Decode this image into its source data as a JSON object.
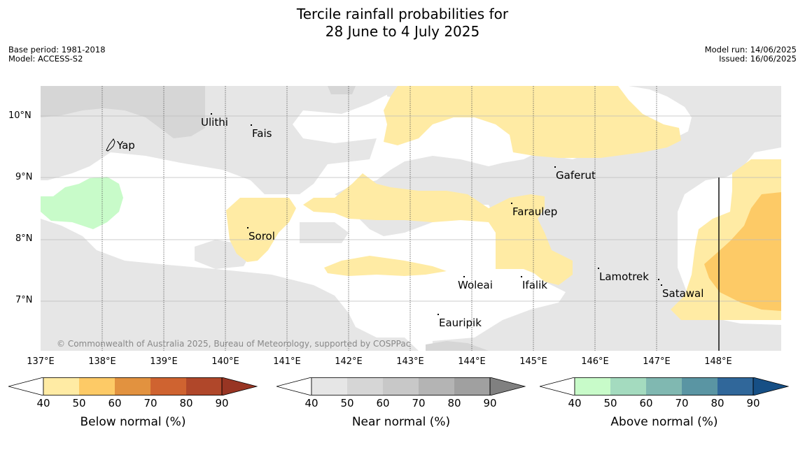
{
  "title_line1": "Tercile rainfall probabilities for",
  "title_line2": "28 June to 4 July 2025",
  "meta_left": [
    "Base period: 1981-2018",
    "Model: ACCESS-S2"
  ],
  "meta_right": [
    "Model run: 14/06/2025",
    "Issued: 16/06/2025"
  ],
  "lat_labels": [
    "10°N",
    "9°N",
    "8°N",
    "7°N"
  ],
  "lon_labels": [
    "137°E",
    "138°E",
    "139°E",
    "140°E",
    "141°E",
    "142°E",
    "143°E",
    "144°E",
    "145°E",
    "146°E",
    "147°E",
    "148°E"
  ],
  "places": [
    "Ulithi",
    "Fais",
    "Yap",
    "Gaferut",
    "Faraulep",
    "Sorol",
    "Lamotrek",
    "Woleai",
    "Ifalik",
    "Satawal",
    "Eauripik"
  ],
  "copyright": "© Commonwealth of Australia 2025, Bureau of Meteorology, supported by COSPPac",
  "colorbars": [
    {
      "label": "Below normal (%)",
      "ticks": [
        "40",
        "50",
        "60",
        "70",
        "80",
        "90"
      ],
      "colors": [
        "#ffeba4",
        "#fdca66",
        "#e2923f",
        "#cf6330",
        "#b0472a"
      ],
      "high": "#983523",
      "low": "#ffffff"
    },
    {
      "label": "Near normal (%)",
      "ticks": [
        "40",
        "50",
        "60",
        "70",
        "80",
        "90"
      ],
      "colors": [
        "#e6e6e6",
        "#d6d6d6",
        "#c8c8c8",
        "#b4b4b4",
        "#a0a0a0"
      ],
      "high": "#808080",
      "low": "#ffffff"
    },
    {
      "label": "Above normal (%)",
      "ticks": [
        "40",
        "50",
        "60",
        "70",
        "80",
        "90"
      ],
      "colors": [
        "#c8fbc9",
        "#a4dbbf",
        "#80b8b1",
        "#5a95a3",
        "#30679a"
      ],
      "high": "#164f85",
      "low": "#ffffff"
    }
  ]
}
